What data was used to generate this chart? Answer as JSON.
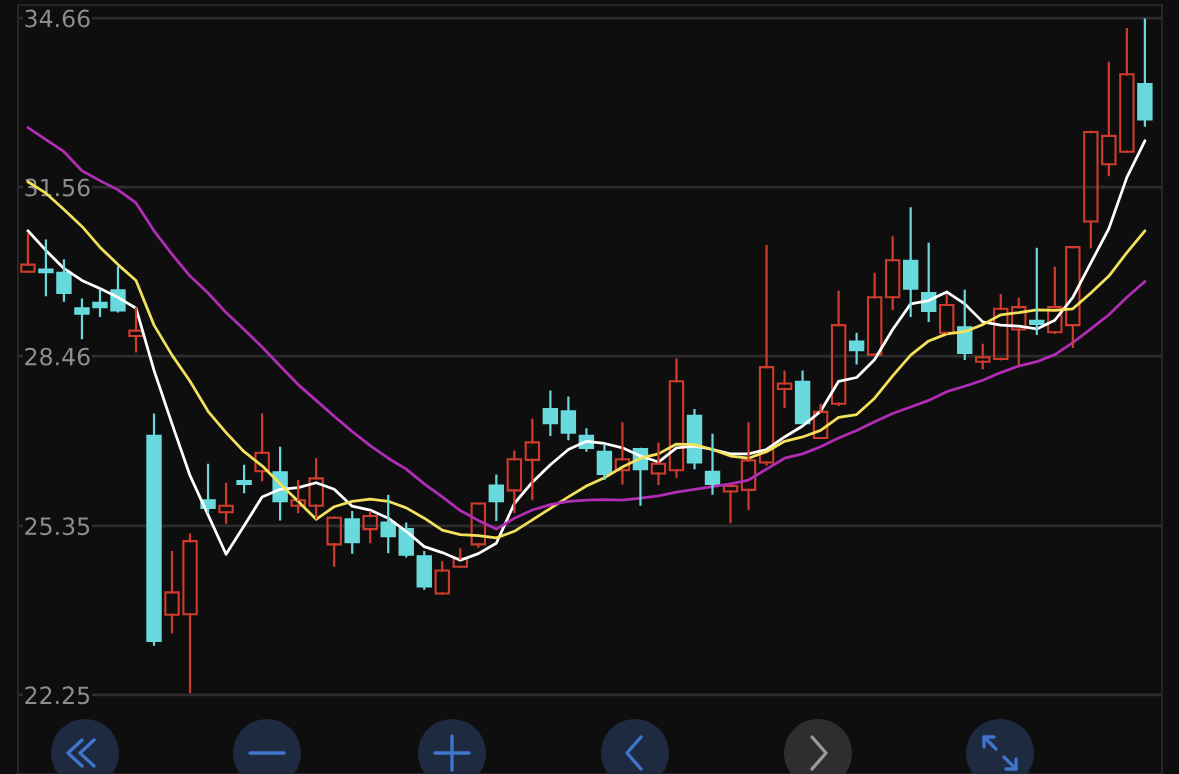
{
  "chart_data": {
    "type": "candlestick",
    "categories": [
      null,
      null,
      null,
      null,
      null,
      null,
      null,
      null,
      null,
      null,
      null,
      null,
      null,
      null,
      null,
      null,
      null,
      null,
      null,
      null,
      null,
      null,
      null,
      null,
      null,
      null,
      null,
      null,
      null,
      null,
      null,
      null,
      null,
      null,
      null,
      null,
      null,
      null,
      null,
      null,
      null,
      null,
      null,
      null,
      null,
      null,
      null,
      null,
      null,
      null,
      null,
      null,
      null,
      null,
      null,
      null,
      null,
      null,
      null,
      null,
      null,
      null,
      null
    ],
    "ohlc": [
      [
        30.01,
        30.69,
        30.01,
        30.14
      ],
      [
        30.05,
        30.58,
        29.58,
        30.0
      ],
      [
        29.99,
        30.22,
        29.48,
        29.62
      ],
      [
        29.34,
        29.5,
        28.79,
        29.24
      ],
      [
        29.44,
        29.66,
        29.2,
        29.36
      ],
      [
        29.67,
        30.08,
        29.28,
        29.3
      ],
      [
        28.83,
        29.34,
        28.55,
        28.93
      ],
      [
        27.0,
        27.39,
        23.17,
        23.24
      ],
      [
        23.72,
        24.87,
        23.4,
        24.13
      ],
      [
        23.73,
        25.19,
        22.3,
        25.07
      ],
      [
        25.82,
        26.47,
        25.6,
        25.68
      ],
      [
        25.6,
        26.12,
        25.41,
        25.72
      ],
      [
        26.17,
        26.45,
        25.97,
        26.12
      ],
      [
        26.35,
        27.39,
        26.19,
        26.69
      ],
      [
        26.33,
        26.78,
        25.47,
        25.8
      ],
      [
        25.72,
        26.17,
        25.6,
        25.82
      ],
      [
        25.72,
        26.57,
        25.49,
        26.22
      ],
      [
        25.01,
        25.5,
        24.62,
        25.5
      ],
      [
        25.47,
        25.6,
        24.86,
        25.05
      ],
      [
        25.29,
        25.6,
        25.05,
        25.53
      ],
      [
        25.41,
        25.9,
        24.87,
        25.16
      ],
      [
        25.29,
        25.39,
        24.79,
        24.82
      ],
      [
        24.79,
        24.87,
        24.2,
        24.24
      ],
      [
        24.11,
        24.68,
        24.11,
        24.53
      ],
      [
        24.6,
        24.92,
        24.6,
        24.75
      ],
      [
        25.01,
        25.76,
        24.97,
        25.76
      ],
      [
        26.09,
        26.27,
        25.46,
        25.8
      ],
      [
        26.0,
        26.71,
        25.6,
        26.57
      ],
      [
        26.56,
        27.3,
        25.84,
        26.88
      ],
      [
        27.49,
        27.81,
        27.02,
        27.23
      ],
      [
        27.45,
        27.7,
        26.94,
        27.06
      ],
      [
        27.0,
        27.12,
        26.73,
        26.78
      ],
      [
        26.71,
        26.82,
        26.21,
        26.3
      ],
      [
        26.37,
        27.23,
        26.13,
        26.57
      ],
      [
        26.76,
        26.76,
        25.74,
        26.39
      ],
      [
        26.31,
        26.86,
        26.12,
        26.49
      ],
      [
        26.37,
        28.4,
        26.25,
        28.0
      ],
      [
        27.37,
        27.47,
        26.41,
        26.51
      ],
      [
        26.34,
        27.02,
        25.94,
        26.12
      ],
      [
        25.98,
        26.08,
        25.42,
        26.08
      ],
      [
        26.01,
        27.23,
        25.66,
        26.55
      ],
      [
        26.51,
        30.48,
        26.47,
        28.26
      ],
      [
        27.86,
        28.18,
        27.53,
        27.96
      ],
      [
        27.99,
        28.18,
        27.23,
        27.23
      ],
      [
        26.96,
        27.57,
        26.96,
        27.44
      ],
      [
        27.59,
        29.64,
        27.57,
        29.03
      ],
      [
        28.73,
        28.87,
        28.33,
        28.57
      ],
      [
        28.49,
        29.97,
        28.48,
        29.54
      ],
      [
        29.54,
        30.64,
        29.33,
        30.22
      ],
      [
        30.21,
        31.17,
        29.2,
        29.7
      ],
      [
        29.62,
        30.52,
        29.11,
        29.29
      ],
      [
        28.89,
        29.58,
        28.89,
        29.4
      ],
      [
        28.99,
        29.66,
        28.41,
        28.52
      ],
      [
        28.36,
        28.67,
        28.24,
        28.44
      ],
      [
        28.41,
        29.58,
        28.4,
        29.33
      ],
      [
        28.95,
        29.51,
        28.32,
        29.36
      ],
      [
        29.11,
        30.43,
        28.87,
        29.05
      ],
      [
        28.9,
        30.08,
        28.89,
        29.36
      ],
      [
        29.03,
        30.46,
        28.63,
        30.46
      ],
      [
        30.93,
        32.58,
        30.46,
        32.57
      ],
      [
        31.98,
        33.84,
        31.78,
        32.5
      ],
      [
        32.21,
        34.46,
        32.21,
        33.63
      ],
      [
        33.45,
        34.63,
        32.69,
        32.8
      ]
    ],
    "colors": [
      "#cf3c2c",
      "#68d9dc",
      "#68d9dc",
      "#68d9dc",
      "#68d9dc",
      "#68d9dc",
      "#cf3c2c",
      "#68d9dc",
      "#cf3c2c",
      "#cf3c2c",
      "#68d9dc",
      "#cf3c2c",
      "#68d9dc",
      "#cf3c2c",
      "#68d9dc",
      "#cf3c2c",
      "#cf3c2c",
      "#cf3c2c",
      "#68d9dc",
      "#cf3c2c",
      "#68d9dc",
      "#68d9dc",
      "#68d9dc",
      "#cf3c2c",
      "#cf3c2c",
      "#cf3c2c",
      "#68d9dc",
      "#cf3c2c",
      "#cf3c2c",
      "#68d9dc",
      "#68d9dc",
      "#68d9dc",
      "#68d9dc",
      "#cf3c2c",
      "#68d9dc",
      "#cf3c2c",
      "#cf3c2c",
      "#68d9dc",
      "#68d9dc",
      "#cf3c2c",
      "#cf3c2c",
      "#cf3c2c",
      "#cf3c2c",
      "#68d9dc",
      "#cf3c2c",
      "#cf3c2c",
      "#68d9dc",
      "#cf3c2c",
      "#cf3c2c",
      "#68d9dc",
      "#68d9dc",
      "#cf3c2c",
      "#68d9dc",
      "#cf3c2c",
      "#cf3c2c",
      "#cf3c2c",
      "#68d9dc",
      "#cf3c2c",
      "#cf3c2c",
      "#cf3c2c",
      "#cf3c2c",
      "#cf3c2c",
      "#68d9dc"
    ],
    "series": [
      {
        "type": "line",
        "color": "#ffffff",
        "values": [
          30.76,
          30.4,
          30.07,
          29.85,
          29.7,
          29.54,
          29.34,
          28.2,
          27.22,
          26.27,
          25.55,
          24.83,
          25.35,
          25.88,
          26.02,
          26.05,
          26.14,
          26.02,
          25.71,
          25.64,
          25.49,
          25.25,
          24.97,
          24.86,
          24.72,
          24.84,
          25.03,
          25.76,
          26.15,
          26.47,
          26.75,
          26.9,
          26.86,
          26.78,
          26.63,
          26.52,
          26.78,
          26.81,
          26.75,
          26.67,
          26.67,
          26.75,
          26.98,
          27.18,
          27.45,
          28.0,
          28.07,
          28.4,
          28.95,
          29.42,
          29.48,
          29.64,
          29.42,
          29.09,
          29.03,
          29.01,
          28.96,
          29.12,
          29.54,
          30.17,
          30.8,
          31.74,
          32.41
        ]
      },
      {
        "type": "line",
        "color": "#f3e15b",
        "values": [
          31.66,
          31.45,
          31.15,
          30.84,
          30.46,
          30.14,
          29.85,
          29.03,
          28.48,
          28.0,
          27.45,
          27.06,
          26.71,
          26.45,
          26.12,
          25.8,
          25.47,
          25.7,
          25.8,
          25.84,
          25.8,
          25.68,
          25.49,
          25.27,
          25.19,
          25.17,
          25.13,
          25.25,
          25.46,
          25.67,
          25.88,
          26.08,
          26.23,
          26.43,
          26.59,
          26.67,
          26.85,
          26.84,
          26.75,
          26.63,
          26.59,
          26.71,
          26.9,
          26.98,
          27.1,
          27.34,
          27.39,
          27.69,
          28.1,
          28.48,
          28.74,
          28.87,
          28.91,
          29.04,
          29.22,
          29.26,
          29.31,
          29.3,
          29.33,
          29.62,
          29.93,
          30.36,
          30.76
        ]
      },
      {
        "type": "line",
        "color": "#b12db5",
        "values": [
          32.65,
          32.43,
          32.21,
          31.86,
          31.68,
          31.51,
          31.27,
          30.76,
          30.33,
          29.93,
          29.62,
          29.26,
          28.95,
          28.63,
          28.28,
          27.94,
          27.65,
          27.36,
          27.08,
          26.82,
          26.59,
          26.39,
          26.12,
          25.88,
          25.63,
          25.45,
          25.29,
          25.49,
          25.64,
          25.74,
          25.8,
          25.82,
          25.83,
          25.82,
          25.86,
          25.9,
          25.97,
          26.02,
          26.07,
          26.12,
          26.19,
          26.39,
          26.59,
          26.67,
          26.8,
          26.96,
          27.1,
          27.26,
          27.41,
          27.53,
          27.65,
          27.81,
          27.91,
          28.02,
          28.16,
          28.28,
          28.36,
          28.49,
          28.71,
          28.96,
          29.22,
          29.54,
          29.83
        ]
      }
    ],
    "ylim": [
      20.8,
      34.9
    ],
    "yticks": [
      22.25,
      25.35,
      28.46,
      31.56,
      34.66
    ],
    "grid": "y",
    "tick_labels": "y"
  }
}
